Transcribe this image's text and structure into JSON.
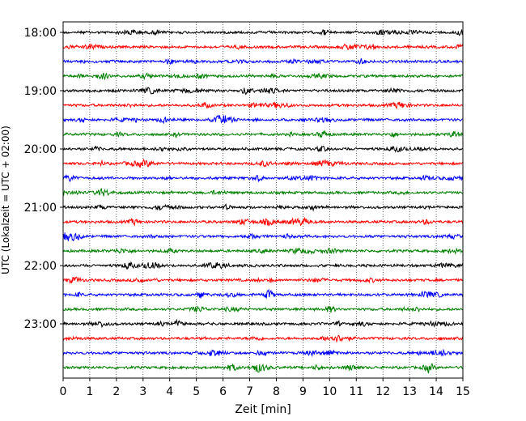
{
  "chart_data": {
    "type": "line",
    "title": "",
    "xlabel": "Zeit  [min]",
    "ylabel": "UTC (Lokalzeit = UTC + 02:00)",
    "xlim": [
      0,
      15
    ],
    "x_ticks": [
      0,
      1,
      2,
      3,
      4,
      5,
      6,
      7,
      8,
      9,
      10,
      11,
      12,
      13,
      14,
      15
    ],
    "y_ticks": [
      "18:00",
      "19:00",
      "20:00",
      "21:00",
      "22:00",
      "23:00"
    ],
    "trace_start_time": "18:00",
    "trace_interval_minutes": 15,
    "trace_count": 24,
    "trace_colors": [
      "#000000",
      "#ff0000",
      "#0000ff",
      "#008000"
    ],
    "grid": "vertical dotted lines at each minute",
    "legend": "none"
  }
}
